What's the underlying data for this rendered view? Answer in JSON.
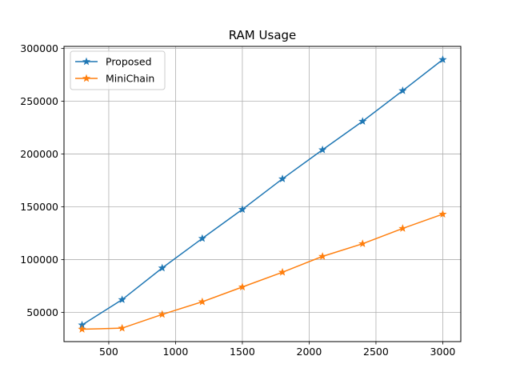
{
  "chart_data": {
    "type": "line",
    "title": "RAM Usage",
    "xlabel": "",
    "ylabel": "",
    "x": [
      300,
      600,
      900,
      1200,
      1500,
      1800,
      2100,
      2400,
      2700,
      3000
    ],
    "series": [
      {
        "name": "Proposed",
        "color": "#1f77b4",
        "marker": "star",
        "values": [
          38000,
          62000,
          92000,
          120000,
          147500,
          176500,
          204000,
          231000,
          260000,
          289500
        ]
      },
      {
        "name": "MiniChain",
        "color": "#ff7f0e",
        "marker": "star",
        "values": [
          34000,
          35000,
          48000,
          60000,
          74000,
          88000,
          103000,
          115000,
          129500,
          143000
        ]
      }
    ],
    "xlim": [
      165,
      3135
    ],
    "ylim": [
      22250,
      302000
    ],
    "xticks": [
      500,
      1000,
      1500,
      2000,
      2500,
      3000
    ],
    "yticks": [
      50000,
      100000,
      150000,
      200000,
      250000,
      300000
    ],
    "grid": true,
    "legend_position": "top-left"
  }
}
